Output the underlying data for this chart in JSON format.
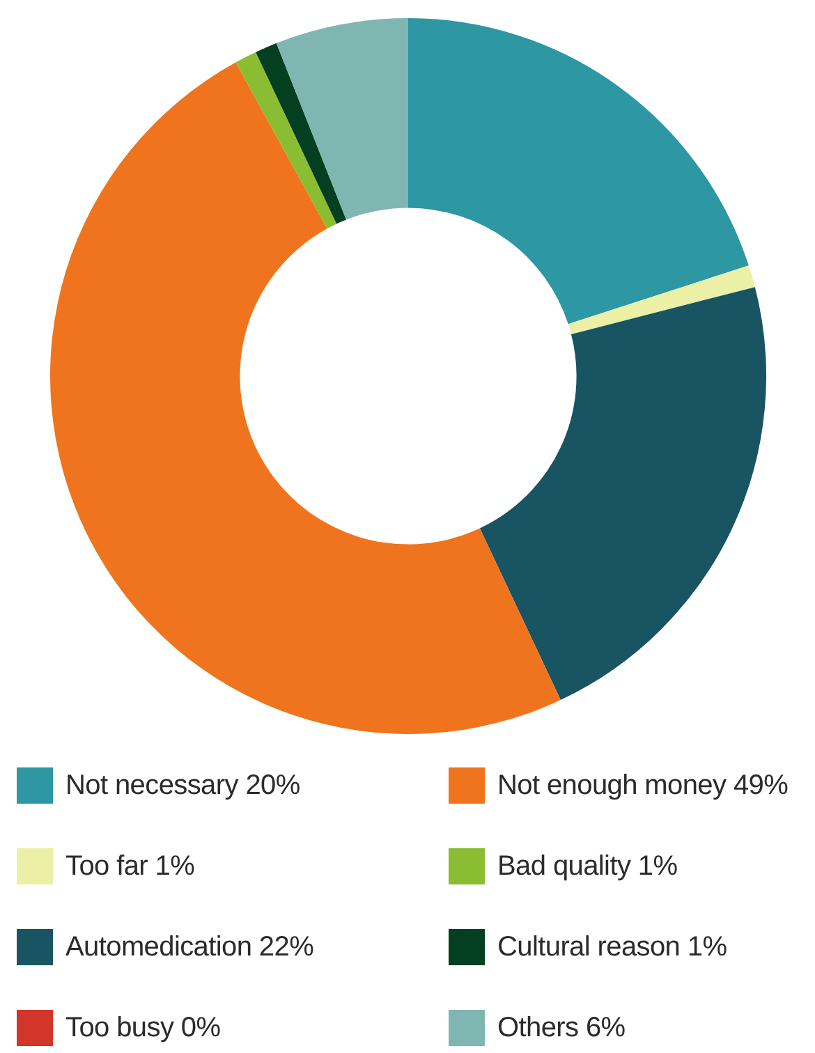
{
  "chart_data": {
    "type": "donut",
    "categories": [
      "Not necessary",
      "Too far",
      "Automedication",
      "Too busy",
      "Not enough money",
      "Bad quality",
      "Cultural reason",
      "Others"
    ],
    "values": [
      20,
      1,
      22,
      0,
      49,
      1,
      1,
      6
    ],
    "value_labels": [
      "20%",
      "1%",
      "22%",
      "0%",
      "49%",
      "1%",
      "1%",
      "6%"
    ],
    "colors": [
      "#2d97a4",
      "#ecf0a7",
      "#185462",
      "#d2352a",
      "#ef741d",
      "#8bbd33",
      "#033f20",
      "#80b6b1"
    ],
    "legend": "bottom"
  }
}
